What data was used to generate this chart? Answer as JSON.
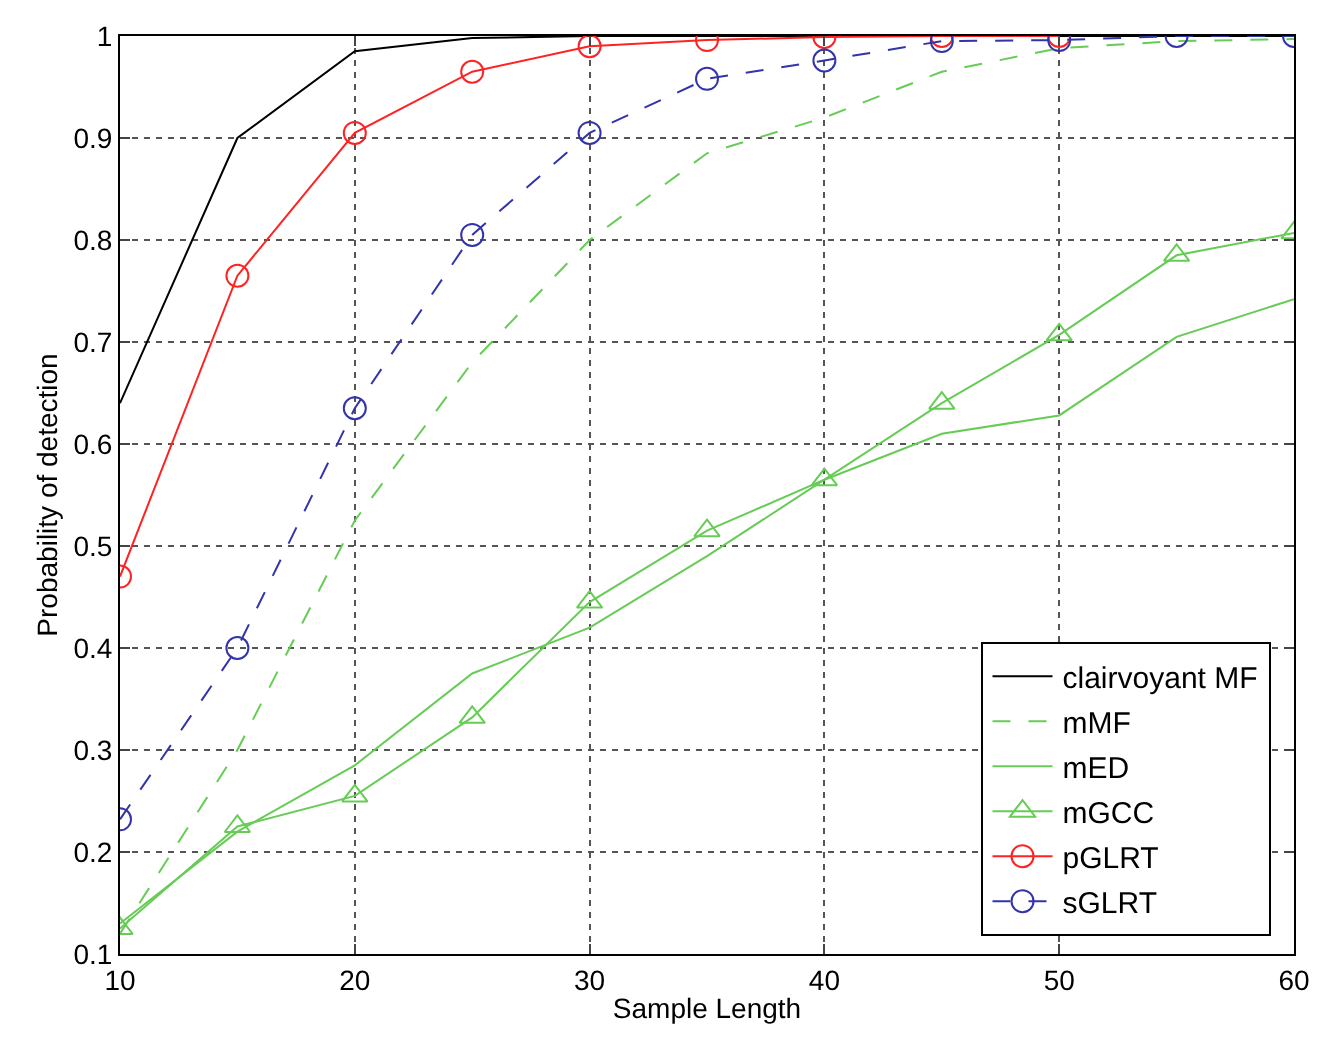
{
  "chart_data": {
    "type": "line",
    "xlabel": "Sample Length",
    "ylabel": "Probability of detection",
    "x": [
      10,
      15,
      20,
      25,
      30,
      35,
      40,
      45,
      50,
      55,
      60
    ],
    "series": [
      {
        "name": "clairvoyant MF",
        "color": "#000000",
        "marker": "none",
        "line_style": "solid",
        "values": [
          0.64,
          0.9,
          0.985,
          0.998,
          1,
          1,
          1,
          1,
          1,
          1,
          1
        ]
      },
      {
        "name": "mMF",
        "color": "#66cc55",
        "marker": "none",
        "line_style": "dashed",
        "values": [
          0.12,
          0.3,
          0.525,
          0.68,
          0.8,
          0.885,
          0.92,
          0.965,
          0.988,
          0.995,
          0.997
        ]
      },
      {
        "name": "mED",
        "color": "#66cc55",
        "marker": "none",
        "line_style": "solid",
        "values": [
          0.13,
          0.22,
          0.285,
          0.375,
          0.42,
          0.49,
          0.565,
          0.61,
          0.628,
          0.705,
          0.742
        ]
      },
      {
        "name": "mGCC",
        "color": "#66cc55",
        "marker": "triangle",
        "line_style": "solid",
        "values": [
          0.125,
          0.225,
          0.255,
          0.332,
          0.445,
          0.515,
          0.565,
          0.64,
          0.707,
          0.785,
          0.807
        ]
      },
      {
        "name": "pGLRT",
        "color": "#ff2222",
        "marker": "circle",
        "line_style": "solid",
        "values": [
          0.47,
          0.765,
          0.905,
          0.965,
          0.99,
          0.996,
          0.999,
          1,
          1,
          null,
          null
        ]
      },
      {
        "name": "sGLRT",
        "color": "#3333aa",
        "marker": "circle",
        "line_style": "dashed",
        "values": [
          0.232,
          0.4,
          0.635,
          0.805,
          0.905,
          0.958,
          0.976,
          0.995,
          0.996,
          1,
          1
        ]
      }
    ],
    "xlim": [
      10,
      60
    ],
    "xticks": [
      10,
      20,
      30,
      40,
      50,
      60
    ],
    "ylim": [
      0.1,
      1
    ],
    "yticks": [
      0.1,
      0.2,
      0.3,
      0.4,
      0.5,
      0.6,
      0.7,
      0.8,
      0.9,
      1
    ],
    "grid": true,
    "legend": "bottom right"
  }
}
